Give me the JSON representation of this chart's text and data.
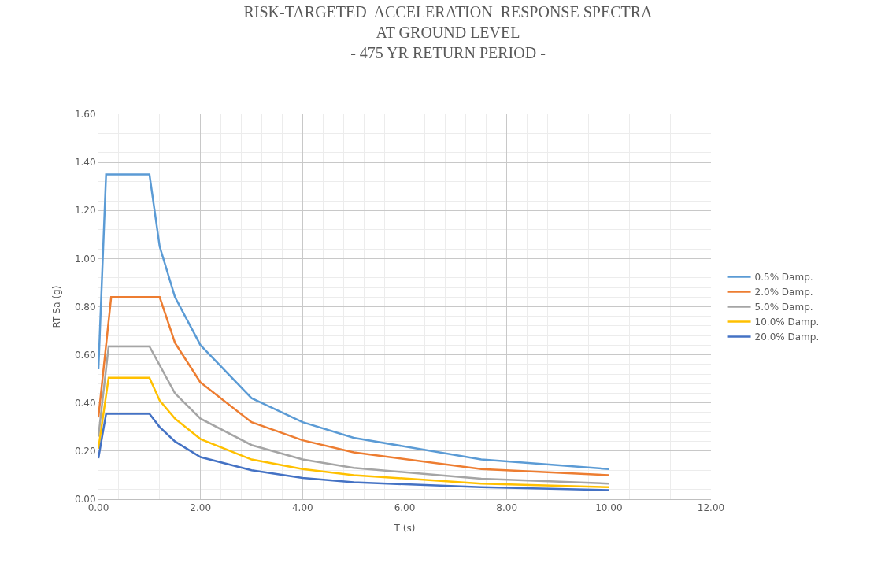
{
  "chart_data": {
    "type": "line",
    "title": "RISK-TARGETED  ACCELERATION  RESPONSE SPECTRA\nAT GROUND LEVEL\n- 475 YR RETURN PERIOD -",
    "xlabel": "T (s)",
    "ylabel": "RT-Sa (g)",
    "xlim": [
      0,
      12
    ],
    "xticks": [
      {
        "value": 0,
        "label": "0.00"
      },
      {
        "value": 2,
        "label": "2.00"
      },
      {
        "value": 4,
        "label": "4.00"
      },
      {
        "value": 6,
        "label": "6.00"
      },
      {
        "value": 8,
        "label": "8.00"
      },
      {
        "value": 10,
        "label": "10.00"
      },
      {
        "value": 12,
        "label": "12.00"
      }
    ],
    "ylim": [
      0,
      1.6
    ],
    "yticks": [
      {
        "value": 0,
        "label": "0.00"
      },
      {
        "value": 0.2,
        "label": "0.20"
      },
      {
        "value": 0.4,
        "label": "0.40"
      },
      {
        "value": 0.6,
        "label": "0.60"
      },
      {
        "value": 0.8,
        "label": "0.80"
      },
      {
        "value": 1.0,
        "label": "1.00"
      },
      {
        "value": 1.2,
        "label": "1.20"
      },
      {
        "value": 1.4,
        "label": "1.40"
      },
      {
        "value": 1.6,
        "label": "1.60"
      }
    ],
    "grid": true,
    "legend": "right",
    "marker": "none",
    "line_style": "solid",
    "series": [
      {
        "name": "0.5% Damp.",
        "color": "#5b9bd5",
        "x": [
          0,
          0.15,
          1.0,
          1.2,
          1.5,
          2,
          3,
          4,
          5,
          7.5,
          10
        ],
        "values": [
          0.54,
          1.35,
          1.35,
          1.05,
          0.84,
          0.64,
          0.42,
          0.32,
          0.255,
          0.165,
          0.125
        ]
      },
      {
        "name": "2.0% Damp.",
        "color": "#ed7d31",
        "x": [
          0,
          0.25,
          1.2,
          1.5,
          2,
          3,
          4,
          5,
          7.5,
          10
        ],
        "values": [
          0.34,
          0.84,
          0.84,
          0.65,
          0.485,
          0.32,
          0.245,
          0.195,
          0.125,
          0.1
        ]
      },
      {
        "name": "5.0% Damp.",
        "color": "#a5a5a5",
        "x": [
          0,
          0.2,
          1.0,
          1.5,
          2,
          3,
          4,
          5,
          7.5,
          10
        ],
        "values": [
          0.26,
          0.635,
          0.635,
          0.44,
          0.335,
          0.225,
          0.165,
          0.13,
          0.085,
          0.065
        ]
      },
      {
        "name": "10.0% Damp.",
        "color": "#ffc000",
        "x": [
          0,
          0.2,
          1.0,
          1.2,
          1.5,
          2,
          3,
          4,
          5,
          7.5,
          10
        ],
        "values": [
          0.21,
          0.505,
          0.505,
          0.41,
          0.335,
          0.25,
          0.165,
          0.125,
          0.1,
          0.065,
          0.05
        ]
      },
      {
        "name": "20.0% Damp.",
        "color": "#4472c4",
        "x": [
          0,
          0.15,
          1.0,
          1.2,
          1.5,
          2,
          3,
          4,
          5,
          7.5,
          10
        ],
        "values": [
          0.17,
          0.355,
          0.355,
          0.3,
          0.24,
          0.175,
          0.12,
          0.088,
          0.07,
          0.05,
          0.038
        ]
      }
    ]
  }
}
